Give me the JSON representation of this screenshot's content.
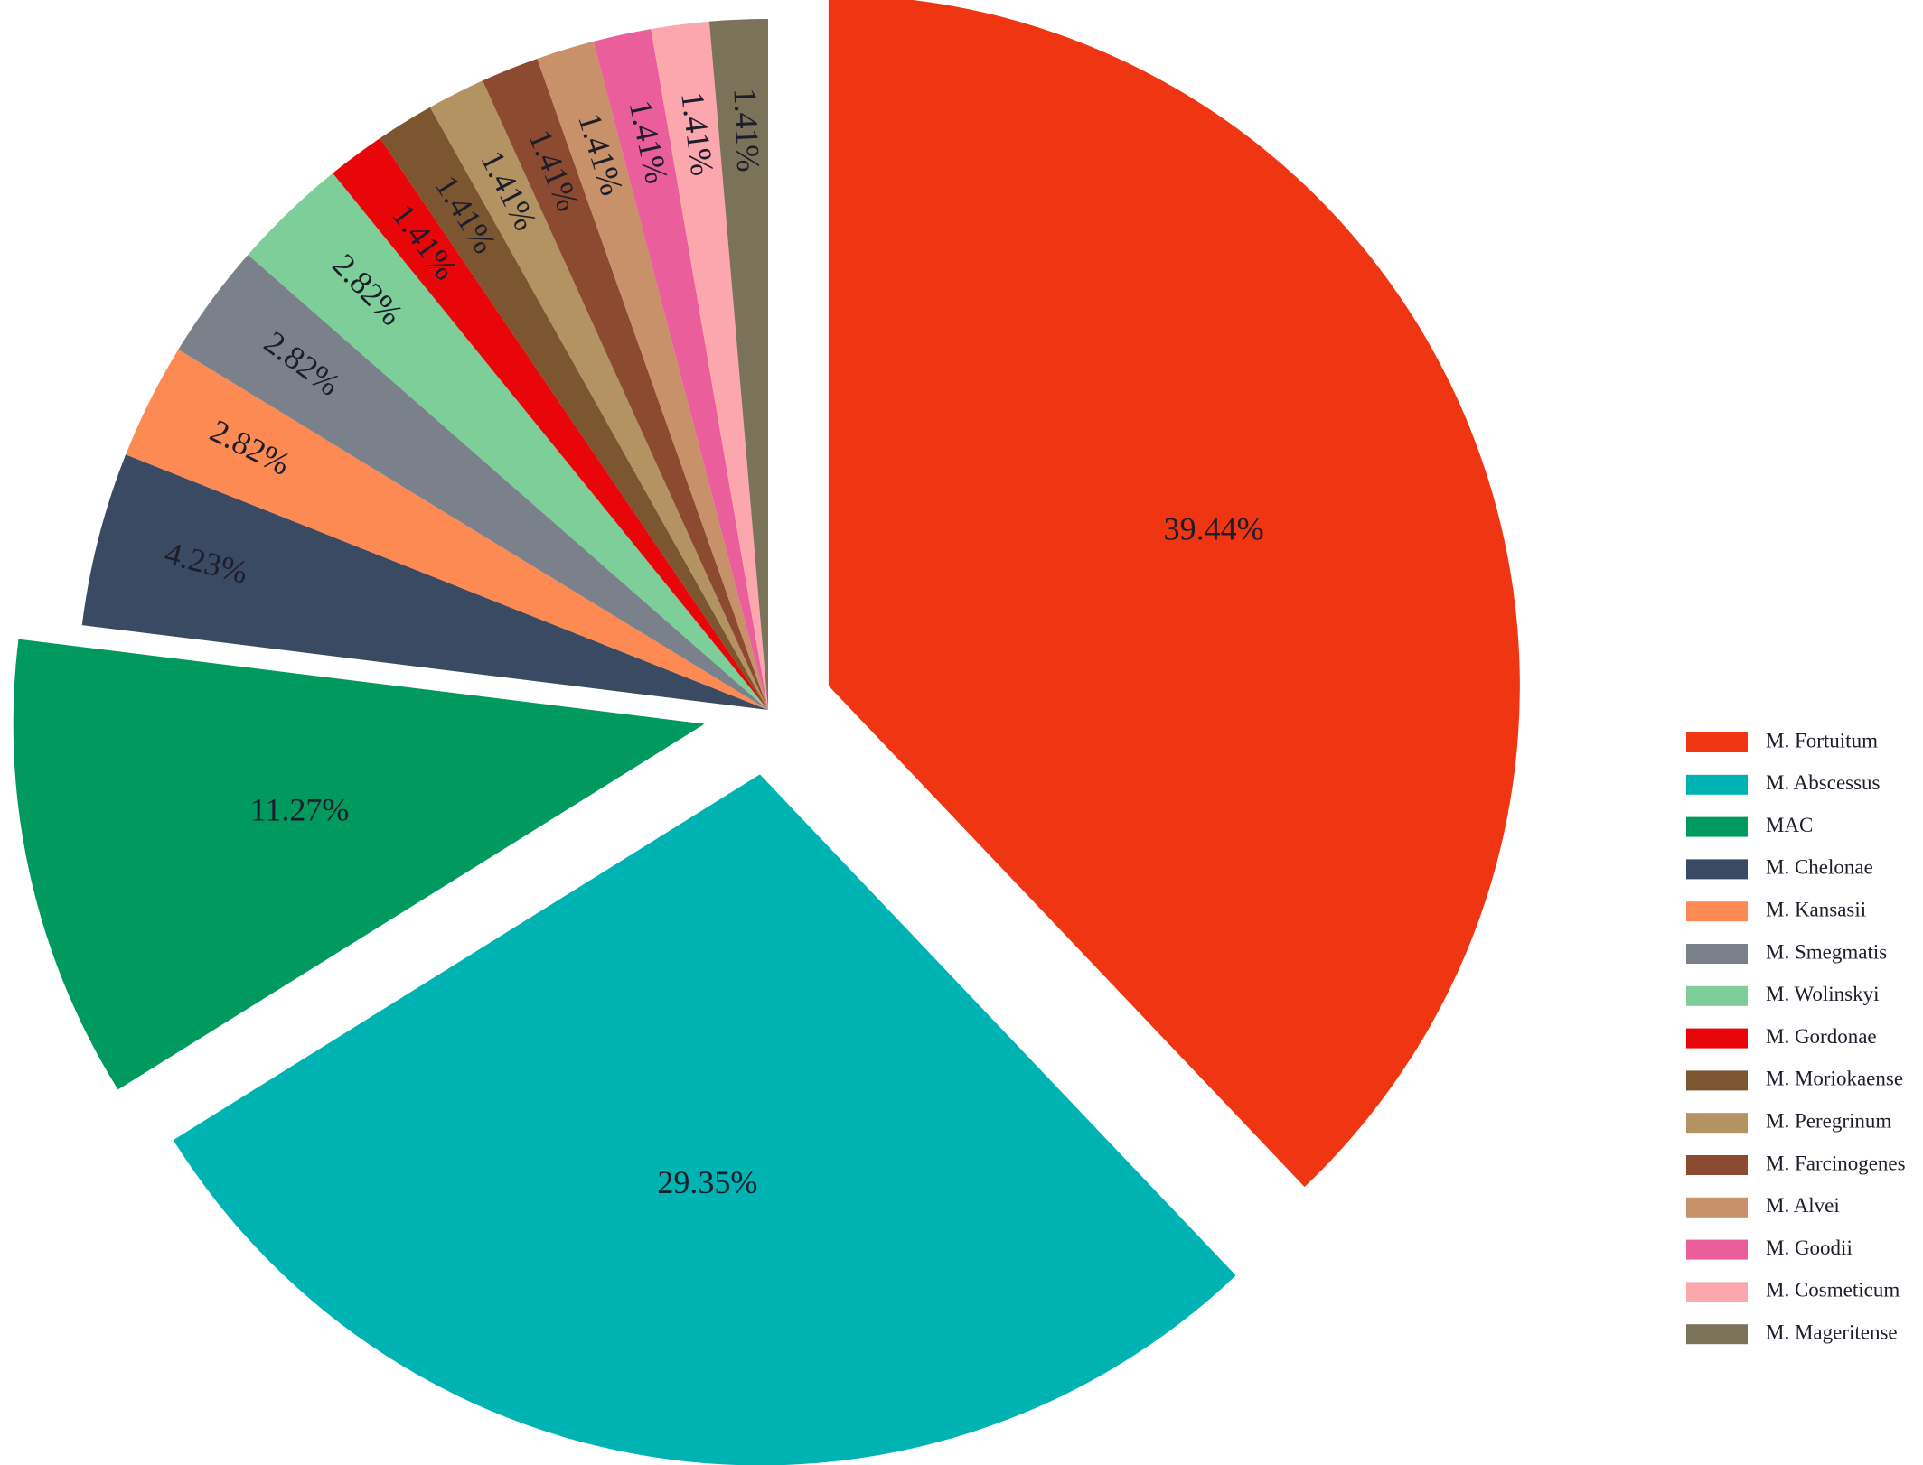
{
  "chart_data": {
    "type": "pie",
    "categories": [
      "M. Fortuitum",
      "M. Abscessus",
      "MAC",
      "M. Chelonae",
      "M. Kansasii",
      "M. Smegmatis",
      "M. Wolinskyi",
      "M. Gordonae",
      "M. Moriokaense",
      "M. Peregrinum",
      "M. Farcinogenes",
      "M. Alvei",
      "M. Goodii",
      "M. Cosmeticum",
      "M. Mageritense"
    ],
    "values": [
      39.44,
      29.35,
      11.27,
      4.23,
      2.82,
      2.82,
      2.82,
      1.41,
      1.41,
      1.41,
      1.41,
      1.41,
      1.41,
      1.41,
      1.41
    ],
    "value_labels": [
      "39.44%",
      "29.35%",
      "11.27%",
      "4.23%",
      "2.82%",
      "2.82%",
      "2.82%",
      "1.41%",
      "1.41%",
      "1.41%",
      "1.41%",
      "1.41%",
      "1.41%",
      "1.41%",
      "1.41%"
    ],
    "colors": [
      "#f03512",
      "#00b3b3",
      "#009a5e",
      "#3a4a62",
      "#fd8a52",
      "#7b818b",
      "#7dce98",
      "#e8060a",
      "#7c5631",
      "#b39362",
      "#8c4a30",
      "#c99169",
      "#ea5f9b",
      "#fca6ae",
      "#7a7259"
    ],
    "legend": "right"
  }
}
